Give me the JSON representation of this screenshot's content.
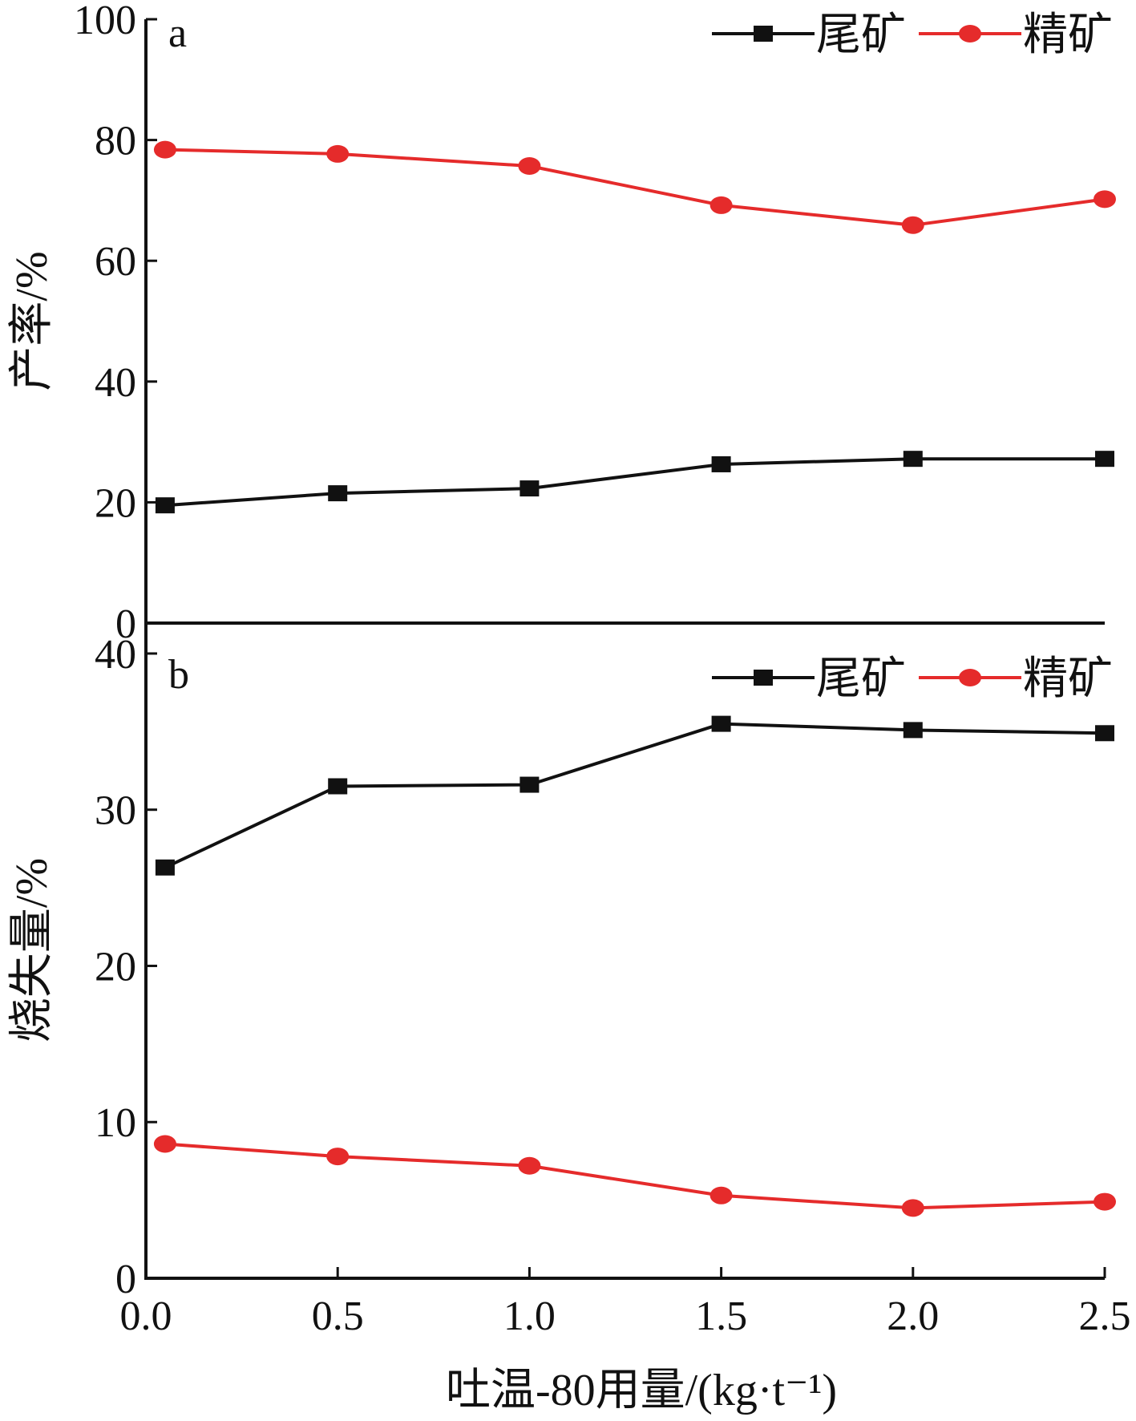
{
  "chart_data": [
    {
      "panel": "a",
      "type": "line",
      "ylabel": "产率/%",
      "xlabel": "",
      "x": [
        0.05,
        0.5,
        1.0,
        1.5,
        2.0,
        2.5
      ],
      "xlim": [
        0,
        2.5
      ],
      "ylim": [
        0,
        100
      ],
      "yticks": [
        "0",
        "20",
        "40",
        "60",
        "80",
        "100"
      ],
      "xticks": [],
      "legend_position": "top-right",
      "series": [
        {
          "name": "尾矿",
          "color": "#111111",
          "marker": "square",
          "values": [
            19.5,
            21.5,
            22.3,
            26.3,
            27.2,
            27.2
          ]
        },
        {
          "name": "精矿",
          "color": "#e52b2b",
          "marker": "circle",
          "values": [
            78.4,
            77.7,
            75.7,
            69.2,
            65.9,
            70.2
          ]
        }
      ]
    },
    {
      "panel": "b",
      "type": "line",
      "ylabel": "烧失量/%",
      "xlabel": "吐温-80用量/(kg·t⁻¹)",
      "x": [
        0.05,
        0.5,
        1.0,
        1.5,
        2.0,
        2.5
      ],
      "xlim": [
        0,
        2.5
      ],
      "ylim": [
        0,
        42
      ],
      "yticks": [
        "0",
        "10",
        "20",
        "30",
        "40"
      ],
      "xticks": [
        "0.0",
        "0.5",
        "1.0",
        "1.5",
        "2.0",
        "2.5"
      ],
      "legend_position": "top-right",
      "series": [
        {
          "name": "尾矿",
          "color": "#111111",
          "marker": "square",
          "values": [
            26.3,
            31.5,
            31.6,
            35.5,
            35.1,
            34.9
          ]
        },
        {
          "name": "精矿",
          "color": "#e52b2b",
          "marker": "circle",
          "values": [
            8.6,
            7.8,
            7.2,
            5.3,
            4.5,
            4.9
          ]
        }
      ]
    }
  ]
}
